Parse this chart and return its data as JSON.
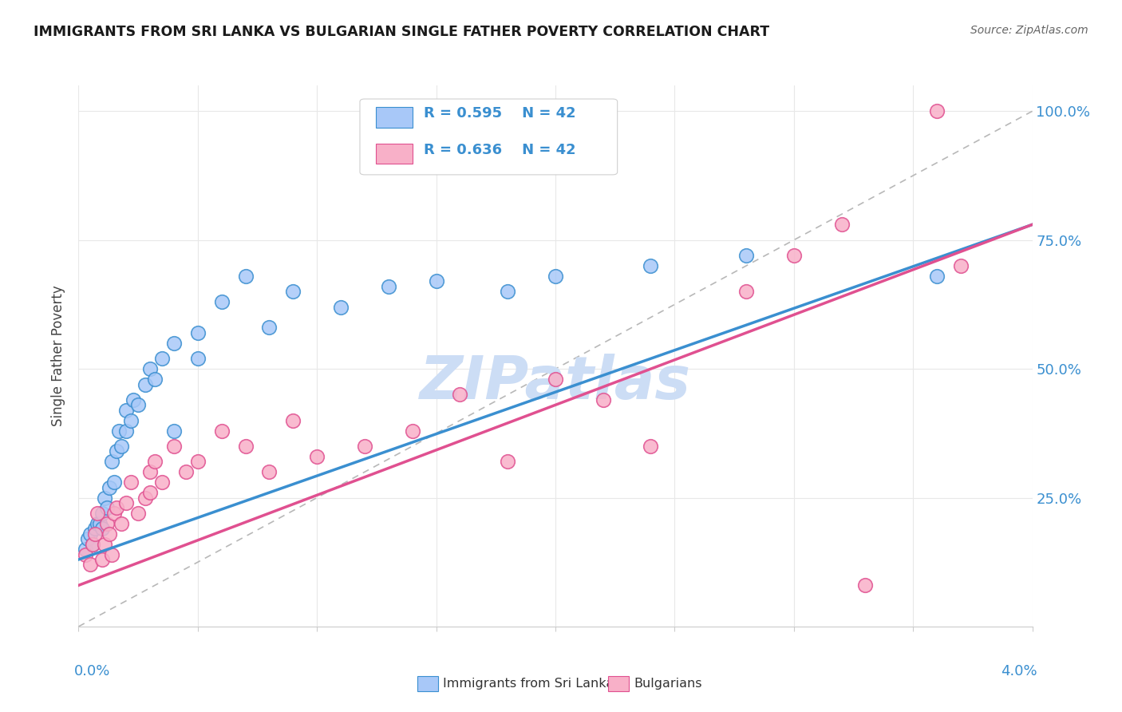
{
  "title": "IMMIGRANTS FROM SRI LANKA VS BULGARIAN SINGLE FATHER POVERTY CORRELATION CHART",
  "source": "Source: ZipAtlas.com",
  "ylabel": "Single Father Poverty",
  "legend_color1": "#a8c8f8",
  "legend_color2": "#f8b0c8",
  "line_color_blue": "#3a8fd0",
  "line_color_pink": "#e05090",
  "diag_line_color": "#b8b8b8",
  "watermark_color": "#ccddf5",
  "background_color": "#ffffff",
  "grid_color": "#e8e8e8",
  "right_axis_color": "#3a8fd0",
  "xmin": 0.0,
  "xmax": 0.04,
  "ymin": 0.0,
  "ymax": 1.05,
  "sri_lanka_x": [
    0.0003,
    0.0004,
    0.0005,
    0.0006,
    0.0007,
    0.0008,
    0.0009,
    0.001,
    0.001,
    0.0011,
    0.0012,
    0.0013,
    0.0014,
    0.0015,
    0.0016,
    0.0017,
    0.0018,
    0.002,
    0.002,
    0.0022,
    0.0023,
    0.0025,
    0.0028,
    0.003,
    0.0032,
    0.0035,
    0.004,
    0.004,
    0.005,
    0.005,
    0.006,
    0.007,
    0.008,
    0.009,
    0.011,
    0.013,
    0.015,
    0.018,
    0.02,
    0.024,
    0.028,
    0.036
  ],
  "sri_lanka_y": [
    0.15,
    0.17,
    0.18,
    0.16,
    0.19,
    0.2,
    0.2,
    0.19,
    0.22,
    0.25,
    0.23,
    0.27,
    0.32,
    0.28,
    0.34,
    0.38,
    0.35,
    0.42,
    0.38,
    0.4,
    0.44,
    0.43,
    0.47,
    0.5,
    0.48,
    0.52,
    0.55,
    0.38,
    0.57,
    0.52,
    0.63,
    0.68,
    0.58,
    0.65,
    0.62,
    0.66,
    0.67,
    0.65,
    0.68,
    0.7,
    0.72,
    0.68
  ],
  "bulgarian_x": [
    0.0003,
    0.0005,
    0.0006,
    0.0007,
    0.0008,
    0.001,
    0.0011,
    0.0012,
    0.0013,
    0.0014,
    0.0015,
    0.0016,
    0.0018,
    0.002,
    0.0022,
    0.0025,
    0.0028,
    0.003,
    0.003,
    0.0032,
    0.0035,
    0.004,
    0.0045,
    0.005,
    0.006,
    0.007,
    0.008,
    0.009,
    0.01,
    0.012,
    0.014,
    0.016,
    0.018,
    0.02,
    0.022,
    0.024,
    0.028,
    0.03,
    0.032,
    0.033,
    0.036,
    0.037
  ],
  "bulgarian_y": [
    0.14,
    0.12,
    0.16,
    0.18,
    0.22,
    0.13,
    0.16,
    0.2,
    0.18,
    0.14,
    0.22,
    0.23,
    0.2,
    0.24,
    0.28,
    0.22,
    0.25,
    0.3,
    0.26,
    0.32,
    0.28,
    0.35,
    0.3,
    0.32,
    0.38,
    0.35,
    0.3,
    0.4,
    0.33,
    0.35,
    0.38,
    0.45,
    0.32,
    0.48,
    0.44,
    0.35,
    0.65,
    0.72,
    0.78,
    0.08,
    1.0,
    0.7
  ]
}
